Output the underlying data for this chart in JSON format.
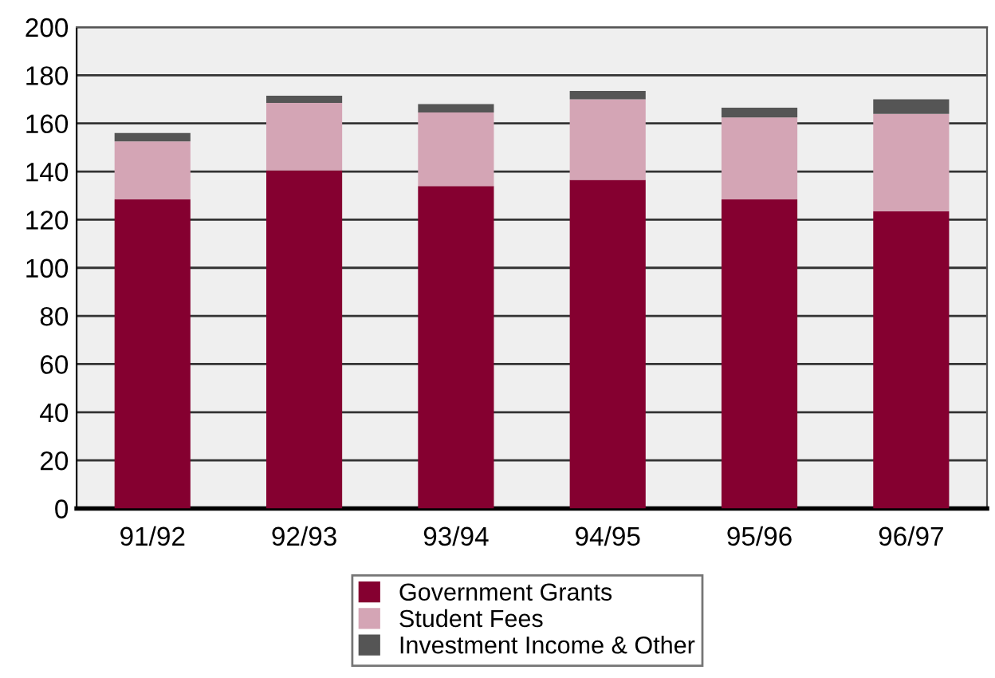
{
  "chart_data": {
    "type": "bar",
    "stacked": true,
    "categories": [
      "91/92",
      "92/93",
      "93/94",
      "94/95",
      "95/96",
      "96/97"
    ],
    "series": [
      {
        "name": "Government Grants",
        "color": "#850030",
        "values": [
          128.5,
          140.5,
          134,
          136.5,
          128.5,
          123.5
        ]
      },
      {
        "name": "Student Fees",
        "color": "#d4a5b5",
        "values": [
          24,
          28,
          30.5,
          33.5,
          34,
          40.5
        ]
      },
      {
        "name": "Investment Income & Other",
        "color": "#555555",
        "values": [
          3.5,
          3,
          3.5,
          3.5,
          4,
          6
        ]
      }
    ],
    "ylim": [
      0,
      200
    ],
    "yticks": [
      0,
      20,
      40,
      60,
      80,
      100,
      120,
      140,
      160,
      180,
      200
    ],
    "grid": "y",
    "legend": "bottom"
  }
}
